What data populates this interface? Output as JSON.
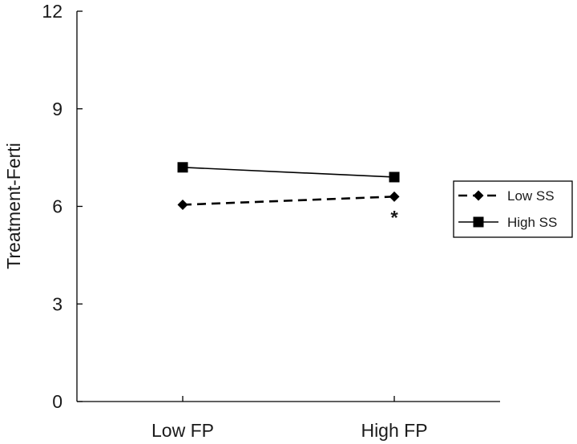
{
  "chart_data": {
    "type": "line",
    "categories": [
      "Low FP",
      "High FP"
    ],
    "ylabel": "Treatment-Ferti",
    "ylim": [
      0,
      12
    ],
    "yticks": [
      "0",
      "3",
      "6",
      "9",
      "12"
    ],
    "grid": false,
    "legend_position": "right",
    "series": [
      {
        "name": "Low SS",
        "values": [
          6.05,
          6.3
        ],
        "line_style": "dashed",
        "marker": "diamond",
        "color": "#000000"
      },
      {
        "name": "High SS",
        "values": [
          7.2,
          6.9
        ],
        "line_style": "solid",
        "marker": "square",
        "color": "#000000"
      }
    ],
    "annotations": [
      {
        "text": "*",
        "category": "High FP",
        "series": "Low SS"
      }
    ]
  }
}
